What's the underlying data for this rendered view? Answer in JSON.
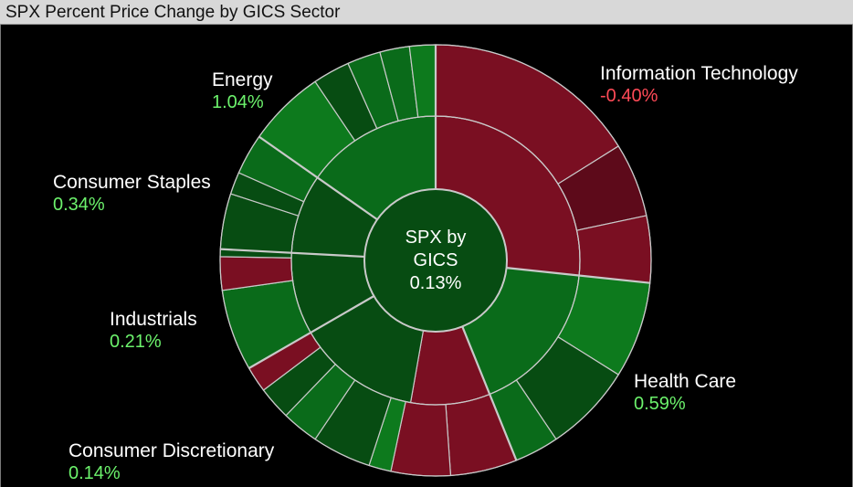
{
  "title": "SPX Percent Price Change by GICS Sector",
  "colors": {
    "pos_light": "#2fc52f",
    "pos_label": "#6cf26c",
    "neg_label": "#ff4a57",
    "neg_fill": "#7a0f22",
    "neg_fill_dark": "#5d0a1a",
    "pos_fill": "#0a6b1a",
    "pos_fill_bright": "#0d7a1d",
    "pos_fill_dark": "#074c12",
    "separator": "#c9c9c9"
  },
  "chart_data": {
    "type": "sunburst",
    "center": {
      "line1": "SPX by",
      "line2": "GICS",
      "value": "0.13%"
    },
    "sectors": [
      {
        "name": "Information Technology",
        "value": "-0.40%",
        "sign": "neg"
      },
      {
        "name": "Health Care",
        "value": "0.59%",
        "sign": "pos"
      },
      {
        "name": "Consumer Discretionary",
        "value": "0.14%",
        "sign": "pos"
      },
      {
        "name": "Industrials",
        "value": "0.21%",
        "sign": "pos"
      },
      {
        "name": "Consumer Staples",
        "value": "0.34%",
        "sign": "pos"
      },
      {
        "name": "Energy",
        "value": "1.04%",
        "sign": "pos"
      }
    ]
  }
}
